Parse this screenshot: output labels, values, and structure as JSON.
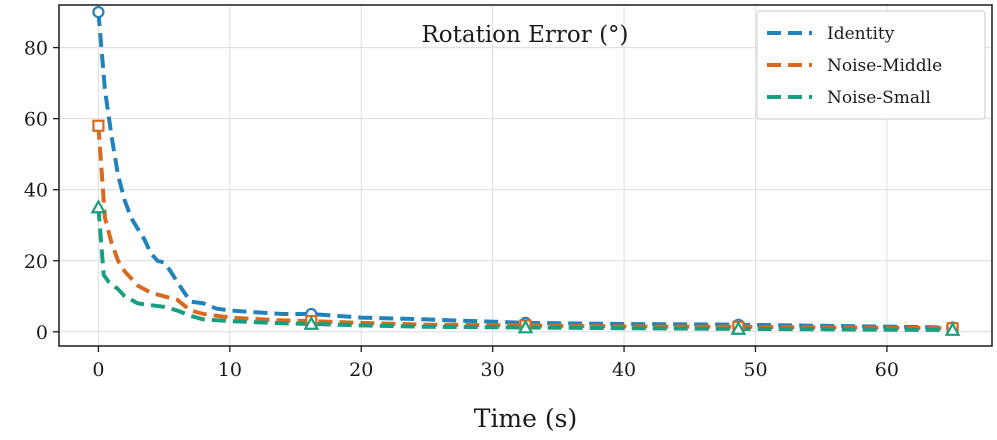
{
  "chart_data": {
    "type": "line",
    "title": "Rotation Error (°)",
    "xlabel": "Time (s)",
    "ylabel": "",
    "xlim": [
      -3,
      68
    ],
    "ylim": [
      -4,
      92
    ],
    "xticks": [
      0,
      10,
      20,
      30,
      40,
      50,
      60
    ],
    "yticks": [
      0,
      20,
      40,
      60,
      80
    ],
    "grid": true,
    "legend_position": "top-right",
    "series": [
      {
        "name": "Identity",
        "color": "#2283bc",
        "marker": "circle",
        "x": [
          0,
          0.5,
          1,
          1.5,
          2,
          2.5,
          3,
          3.5,
          4,
          4.5,
          5,
          5.5,
          6,
          7,
          8,
          9,
          10,
          12,
          14,
          16.2,
          20,
          25,
          32.5,
          40,
          48.7,
          55,
          65
        ],
        "y": [
          90,
          68,
          55,
          44,
          37,
          32,
          29,
          26,
          22,
          20,
          19.5,
          17,
          14,
          8.5,
          8,
          6.5,
          6,
          5.5,
          5,
          5,
          4,
          3.5,
          2.5,
          2.2,
          2,
          1.7,
          1.2
        ],
        "marker_x": [
          0,
          16.2,
          32.5,
          48.7,
          65
        ],
        "marker_y": [
          90,
          5,
          2.5,
          2,
          1.2
        ]
      },
      {
        "name": "Noise-Middle",
        "color": "#d9691f",
        "marker": "square",
        "x": [
          0,
          0.5,
          1,
          1.5,
          2,
          2.5,
          3,
          3.5,
          4,
          5,
          6,
          7,
          8,
          10,
          12,
          14,
          16.2,
          20,
          25,
          32.5,
          40,
          48.7,
          55,
          65
        ],
        "y": [
          58,
          32,
          25,
          20,
          17,
          15,
          13,
          12,
          11,
          10,
          9,
          6,
          5,
          4,
          3.6,
          3.2,
          3,
          2.5,
          2,
          1.8,
          1.5,
          1.4,
          1.2,
          1
        ],
        "marker_x": [
          0,
          16.2,
          32.5,
          48.7,
          65
        ],
        "marker_y": [
          58,
          3,
          1.8,
          1.4,
          1
        ]
      },
      {
        "name": "Noise-Small",
        "color": "#1a9e80",
        "marker": "triangle",
        "x": [
          0,
          0.4,
          0.8,
          1.5,
          2,
          2.5,
          3,
          4,
          5,
          6,
          7,
          8,
          10,
          12,
          14,
          16.2,
          20,
          25,
          32.5,
          40,
          48.7,
          55,
          65
        ],
        "y": [
          35,
          16,
          14,
          12,
          10,
          9,
          8,
          7.5,
          7,
          6,
          4.5,
          3.5,
          3,
          2.7,
          2.4,
          2.2,
          1.8,
          1.4,
          1.2,
          1,
          0.8,
          0.7,
          0.5
        ],
        "marker_x": [
          0,
          16.2,
          32.5,
          48.7,
          65
        ],
        "marker_y": [
          35,
          2.2,
          1.2,
          0.8,
          0.5
        ]
      }
    ]
  }
}
